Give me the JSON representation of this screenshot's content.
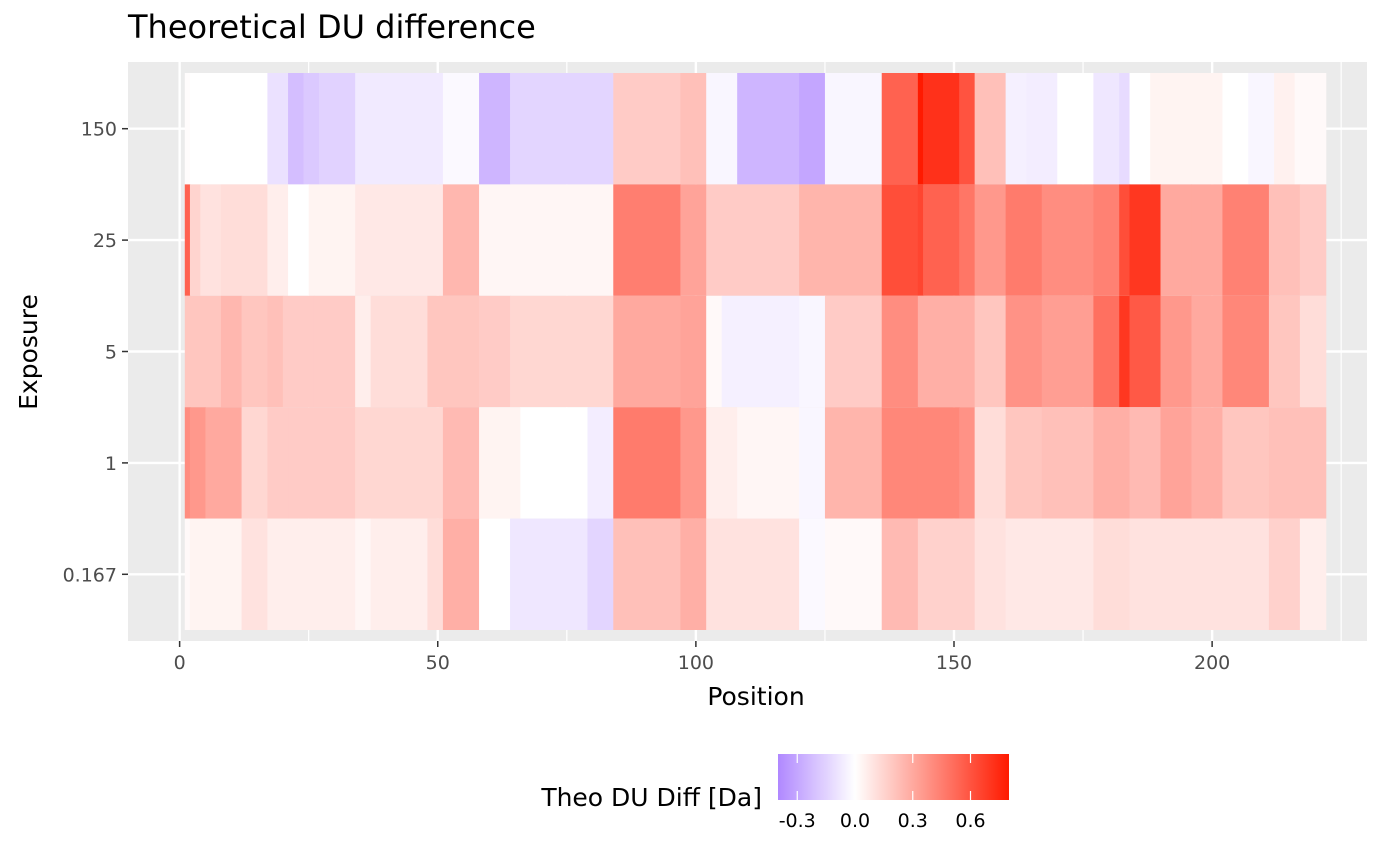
{
  "chart_data": {
    "type": "heatmap",
    "title": "Theoretical DU difference",
    "xlabel": "Position",
    "ylabel": "Exposure",
    "x_ticks": [
      0,
      50,
      100,
      150,
      200
    ],
    "x_range": [
      -10,
      230
    ],
    "y_categories": [
      "0.167",
      "1",
      "5",
      "25",
      "150"
    ],
    "legend": {
      "title": "Theo DU Diff [Da]",
      "position": "bottom",
      "ticks": [
        -0.3,
        0.0,
        0.3,
        0.6
      ],
      "tick_labels": [
        "-0.3",
        "0.0",
        "0.3",
        "0.6"
      ],
      "range": [
        -0.4,
        0.8
      ],
      "low_color": "#b088ff",
      "mid_color": "#ffffff",
      "high_color": "#ff1a00"
    },
    "grid": true,
    "panel_background": "#ebebeb",
    "series": [
      {
        "exposure": "150",
        "segments": [
          [
            1,
            2,
            0.01
          ],
          [
            2,
            17,
            0.0
          ],
          [
            17,
            21,
            -0.1
          ],
          [
            21,
            24,
            -0.22
          ],
          [
            24,
            27,
            -0.18
          ],
          [
            27,
            34,
            -0.15
          ],
          [
            34,
            51,
            -0.07
          ],
          [
            51,
            58,
            -0.02
          ],
          [
            58,
            64,
            -0.25
          ],
          [
            64,
            84,
            -0.14
          ],
          [
            84,
            97,
            0.18
          ],
          [
            97,
            102,
            0.22
          ],
          [
            102,
            108,
            -0.03
          ],
          [
            108,
            120,
            -0.25
          ],
          [
            120,
            125,
            -0.3
          ],
          [
            125,
            136,
            -0.03
          ],
          [
            136,
            143,
            0.55
          ],
          [
            143,
            144,
            0.85
          ],
          [
            144,
            151,
            0.72
          ],
          [
            151,
            154,
            0.6
          ],
          [
            154,
            160,
            0.22
          ],
          [
            160,
            164,
            -0.05
          ],
          [
            164,
            170,
            -0.06
          ],
          [
            170,
            177,
            0.0
          ],
          [
            177,
            182,
            -0.08
          ],
          [
            182,
            184,
            -0.12
          ],
          [
            184,
            188,
            0.0
          ],
          [
            188,
            202,
            0.04
          ],
          [
            202,
            207,
            0.0
          ],
          [
            207,
            212,
            -0.03
          ],
          [
            212,
            216,
            0.05
          ],
          [
            216,
            222,
            0.02
          ]
        ]
      },
      {
        "exposure": "25",
        "segments": [
          [
            1,
            2,
            0.55
          ],
          [
            2,
            4,
            0.15
          ],
          [
            4,
            8,
            0.1
          ],
          [
            8,
            17,
            0.12
          ],
          [
            17,
            21,
            0.06
          ],
          [
            21,
            25,
            0.0
          ],
          [
            25,
            34,
            0.04
          ],
          [
            34,
            51,
            0.08
          ],
          [
            51,
            58,
            0.25
          ],
          [
            58,
            84,
            0.03
          ],
          [
            84,
            97,
            0.45
          ],
          [
            97,
            102,
            0.32
          ],
          [
            102,
            120,
            0.18
          ],
          [
            120,
            136,
            0.26
          ],
          [
            136,
            143,
            0.62
          ],
          [
            143,
            144,
            0.65
          ],
          [
            144,
            151,
            0.55
          ],
          [
            151,
            154,
            0.48
          ],
          [
            154,
            160,
            0.36
          ],
          [
            160,
            167,
            0.46
          ],
          [
            167,
            177,
            0.4
          ],
          [
            177,
            182,
            0.44
          ],
          [
            182,
            184,
            0.62
          ],
          [
            184,
            190,
            0.7
          ],
          [
            190,
            196,
            0.3
          ],
          [
            196,
            202,
            0.3
          ],
          [
            202,
            211,
            0.44
          ],
          [
            211,
            217,
            0.22
          ],
          [
            217,
            222,
            0.18
          ]
        ]
      },
      {
        "exposure": "5",
        "segments": [
          [
            1,
            2,
            0.2
          ],
          [
            2,
            8,
            0.2
          ],
          [
            8,
            12,
            0.25
          ],
          [
            12,
            17,
            0.2
          ],
          [
            17,
            20,
            0.22
          ],
          [
            20,
            26,
            0.18
          ],
          [
            26,
            34,
            0.18
          ],
          [
            34,
            37,
            0.06
          ],
          [
            37,
            48,
            0.12
          ],
          [
            48,
            58,
            0.2
          ],
          [
            58,
            64,
            0.18
          ],
          [
            64,
            84,
            0.14
          ],
          [
            84,
            97,
            0.3
          ],
          [
            97,
            102,
            0.32
          ],
          [
            102,
            105,
            0.02
          ],
          [
            105,
            120,
            -0.05
          ],
          [
            120,
            125,
            -0.03
          ],
          [
            125,
            136,
            0.18
          ],
          [
            136,
            143,
            0.4
          ],
          [
            143,
            154,
            0.28
          ],
          [
            154,
            160,
            0.2
          ],
          [
            160,
            167,
            0.38
          ],
          [
            167,
            177,
            0.34
          ],
          [
            177,
            182,
            0.5
          ],
          [
            182,
            184,
            0.7
          ],
          [
            184,
            190,
            0.58
          ],
          [
            190,
            196,
            0.36
          ],
          [
            196,
            202,
            0.3
          ],
          [
            202,
            211,
            0.42
          ],
          [
            211,
            217,
            0.2
          ],
          [
            217,
            222,
            0.12
          ]
        ]
      },
      {
        "exposure": "1",
        "segments": [
          [
            1,
            2,
            0.4
          ],
          [
            2,
            5,
            0.36
          ],
          [
            5,
            12,
            0.3
          ],
          [
            12,
            17,
            0.14
          ],
          [
            17,
            21,
            0.18
          ],
          [
            21,
            34,
            0.18
          ],
          [
            34,
            51,
            0.14
          ],
          [
            51,
            58,
            0.24
          ],
          [
            58,
            66,
            0.04
          ],
          [
            66,
            79,
            0.0
          ],
          [
            79,
            84,
            -0.06
          ],
          [
            84,
            97,
            0.46
          ],
          [
            97,
            102,
            0.36
          ],
          [
            102,
            108,
            0.06
          ],
          [
            108,
            120,
            0.03
          ],
          [
            120,
            125,
            -0.03
          ],
          [
            125,
            136,
            0.26
          ],
          [
            136,
            143,
            0.42
          ],
          [
            143,
            151,
            0.42
          ],
          [
            151,
            154,
            0.38
          ],
          [
            154,
            160,
            0.12
          ],
          [
            160,
            167,
            0.2
          ],
          [
            167,
            177,
            0.22
          ],
          [
            177,
            184,
            0.28
          ],
          [
            184,
            190,
            0.24
          ],
          [
            190,
            196,
            0.32
          ],
          [
            196,
            202,
            0.28
          ],
          [
            202,
            211,
            0.2
          ],
          [
            211,
            217,
            0.22
          ],
          [
            217,
            222,
            0.22
          ]
        ]
      },
      {
        "exposure": "0.167",
        "segments": [
          [
            1,
            2,
            0.02
          ],
          [
            2,
            12,
            0.04
          ],
          [
            12,
            17,
            0.1
          ],
          [
            17,
            34,
            0.06
          ],
          [
            34,
            37,
            0.03
          ],
          [
            37,
            48,
            0.06
          ],
          [
            48,
            51,
            0.12
          ],
          [
            51,
            58,
            0.28
          ],
          [
            58,
            64,
            0.0
          ],
          [
            64,
            79,
            -0.08
          ],
          [
            79,
            84,
            -0.14
          ],
          [
            84,
            97,
            0.22
          ],
          [
            97,
            102,
            0.28
          ],
          [
            102,
            120,
            0.1
          ],
          [
            120,
            125,
            -0.02
          ],
          [
            125,
            136,
            0.02
          ],
          [
            136,
            143,
            0.24
          ],
          [
            143,
            154,
            0.16
          ],
          [
            154,
            160,
            0.1
          ],
          [
            160,
            177,
            0.08
          ],
          [
            177,
            184,
            0.12
          ],
          [
            184,
            202,
            0.1
          ],
          [
            202,
            211,
            0.1
          ],
          [
            211,
            217,
            0.16
          ],
          [
            217,
            222,
            0.06
          ]
        ]
      }
    ]
  }
}
